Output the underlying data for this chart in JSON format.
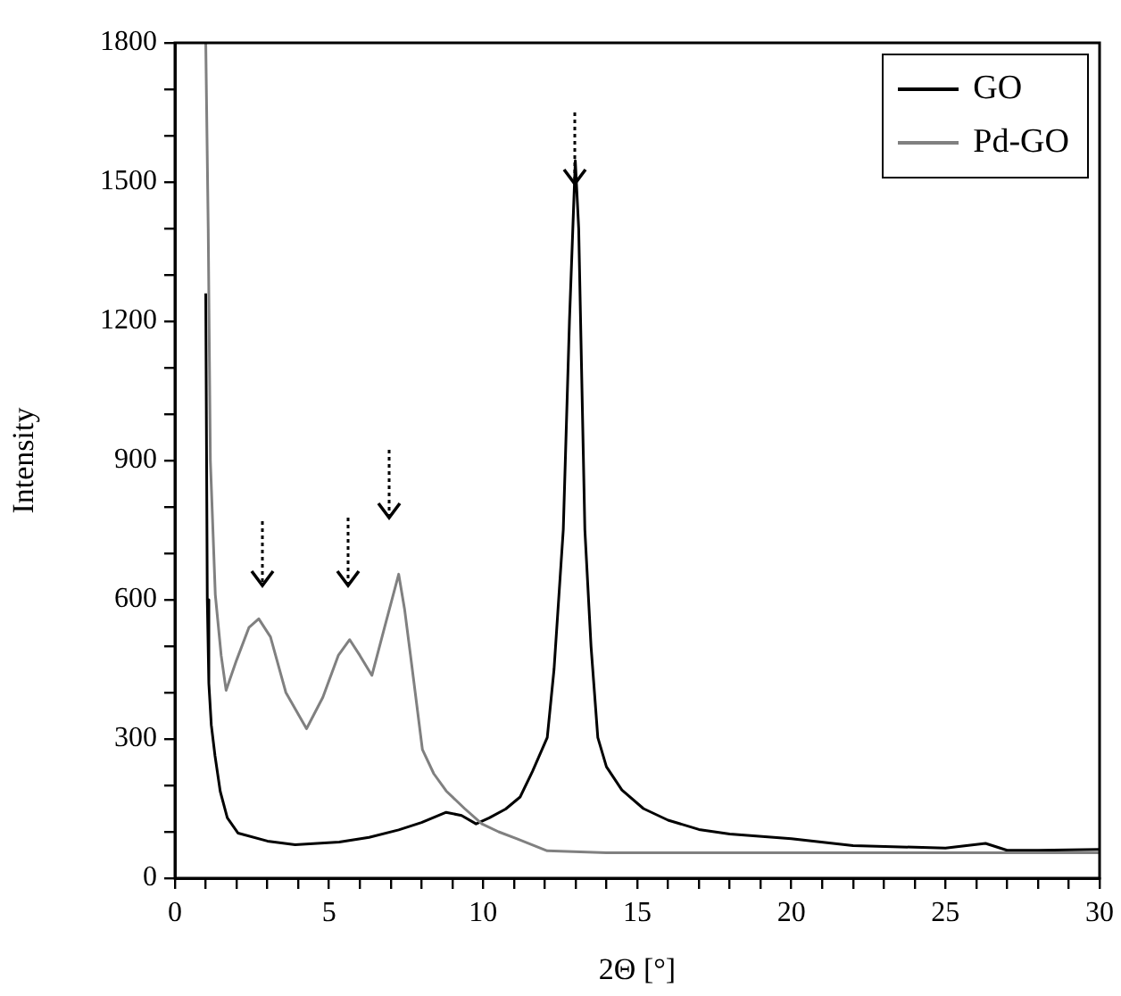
{
  "chart_data": {
    "type": "line",
    "xlabel": "2Θ [°]",
    "ylabel": "Intensity",
    "xlim": [
      0,
      30
    ],
    "ylim": [
      0,
      1800
    ],
    "xticks": [
      0,
      {
        "value": 1,
        "label": null
      },
      {
        "value": 2,
        "label": null
      },
      {
        "value": 3,
        "label": null
      },
      {
        "value": 4,
        "label": null
      },
      5,
      {
        "value": 6,
        "label": null
      },
      {
        "value": 7,
        "label": null
      },
      {
        "value": 8,
        "label": null
      },
      {
        "value": 9,
        "label": null
      },
      10,
      {
        "value": 11,
        "label": null
      },
      {
        "value": 12,
        "label": null
      },
      {
        "value": 13,
        "label": null
      },
      {
        "value": 14,
        "label": null
      },
      15,
      {
        "value": 16,
        "label": null
      },
      {
        "value": 17,
        "label": null
      },
      {
        "value": 18,
        "label": null
      },
      {
        "value": 19,
        "label": null
      },
      20,
      {
        "value": 21,
        "label": null
      },
      {
        "value": 22,
        "label": null
      },
      {
        "value": 23,
        "label": null
      },
      {
        "value": 24,
        "label": null
      },
      25,
      {
        "value": 26,
        "label": null
      },
      {
        "value": 27,
        "label": null
      },
      {
        "value": 28,
        "label": null
      },
      {
        "value": 29,
        "label": null
      },
      30
    ],
    "yticks": [
      0,
      {
        "value": 100,
        "label": null
      },
      {
        "value": 200,
        "label": null
      },
      300,
      {
        "value": 400,
        "label": null
      },
      {
        "value": 500,
        "label": null
      },
      600,
      {
        "value": 700,
        "label": null
      },
      {
        "value": 800,
        "label": null
      },
      900,
      {
        "value": 1000,
        "label": null
      },
      {
        "value": 1100,
        "label": null
      },
      1200,
      {
        "value": 1300,
        "label": null
      },
      {
        "value": 1400,
        "label": null
      },
      1500,
      {
        "value": 1600,
        "label": null
      },
      {
        "value": 1700,
        "label": null
      },
      1800
    ],
    "legend": "top right",
    "marker": "none",
    "line_style": "solid",
    "series": [
      {
        "name": "GO",
        "color": "#000000",
        "x": [
          1.0,
          1.05,
          1.1,
          1.18,
          1.3,
          1.47,
          1.7,
          2.05,
          3.0,
          3.9,
          5.33,
          6.3,
          7.26,
          8.0,
          8.8,
          9.3,
          9.77,
          10.2,
          10.73,
          11.2,
          11.6,
          12.08,
          12.3,
          12.6,
          12.8,
          12.99,
          13.1,
          13.3,
          13.5,
          13.72,
          14.0,
          14.5,
          15.2,
          16,
          17,
          18,
          20,
          22,
          25,
          26.3,
          27,
          28,
          30
        ],
        "values": [
          1260,
          600,
          420,
          330,
          264,
          187,
          130,
          97,
          80,
          72,
          78,
          88,
          104,
          120,
          142,
          135,
          117,
          130,
          149,
          175,
          230,
          303,
          450,
          751,
          1200,
          1546,
          1400,
          751,
          500,
          303,
          240,
          190,
          150,
          125,
          105,
          95,
          85,
          70,
          65,
          75,
          60,
          60,
          62
        ]
      },
      {
        "name": "Pd-GO",
        "color": "#808080",
        "x": [
          1.0,
          1.08,
          1.15,
          1.31,
          1.5,
          1.66,
          2.0,
          2.4,
          2.72,
          3.1,
          3.6,
          4.27,
          4.8,
          5.3,
          5.67,
          6.0,
          6.39,
          6.8,
          7.26,
          7.45,
          7.64,
          8.03,
          8.4,
          8.8,
          9.4,
          9.96,
          10.5,
          11.1,
          12.08,
          14,
          17,
          20,
          25,
          30
        ],
        "values": [
          1800,
          1400,
          900,
          611,
          480,
          405,
          470,
          540,
          559,
          520,
          400,
          322,
          390,
          480,
          514,
          480,
          437,
          540,
          655,
          580,
          482,
          277,
          225,
          188,
          150,
          117,
          100,
          85,
          59,
          55,
          55,
          55,
          55,
          55
        ]
      }
    ]
  }
}
